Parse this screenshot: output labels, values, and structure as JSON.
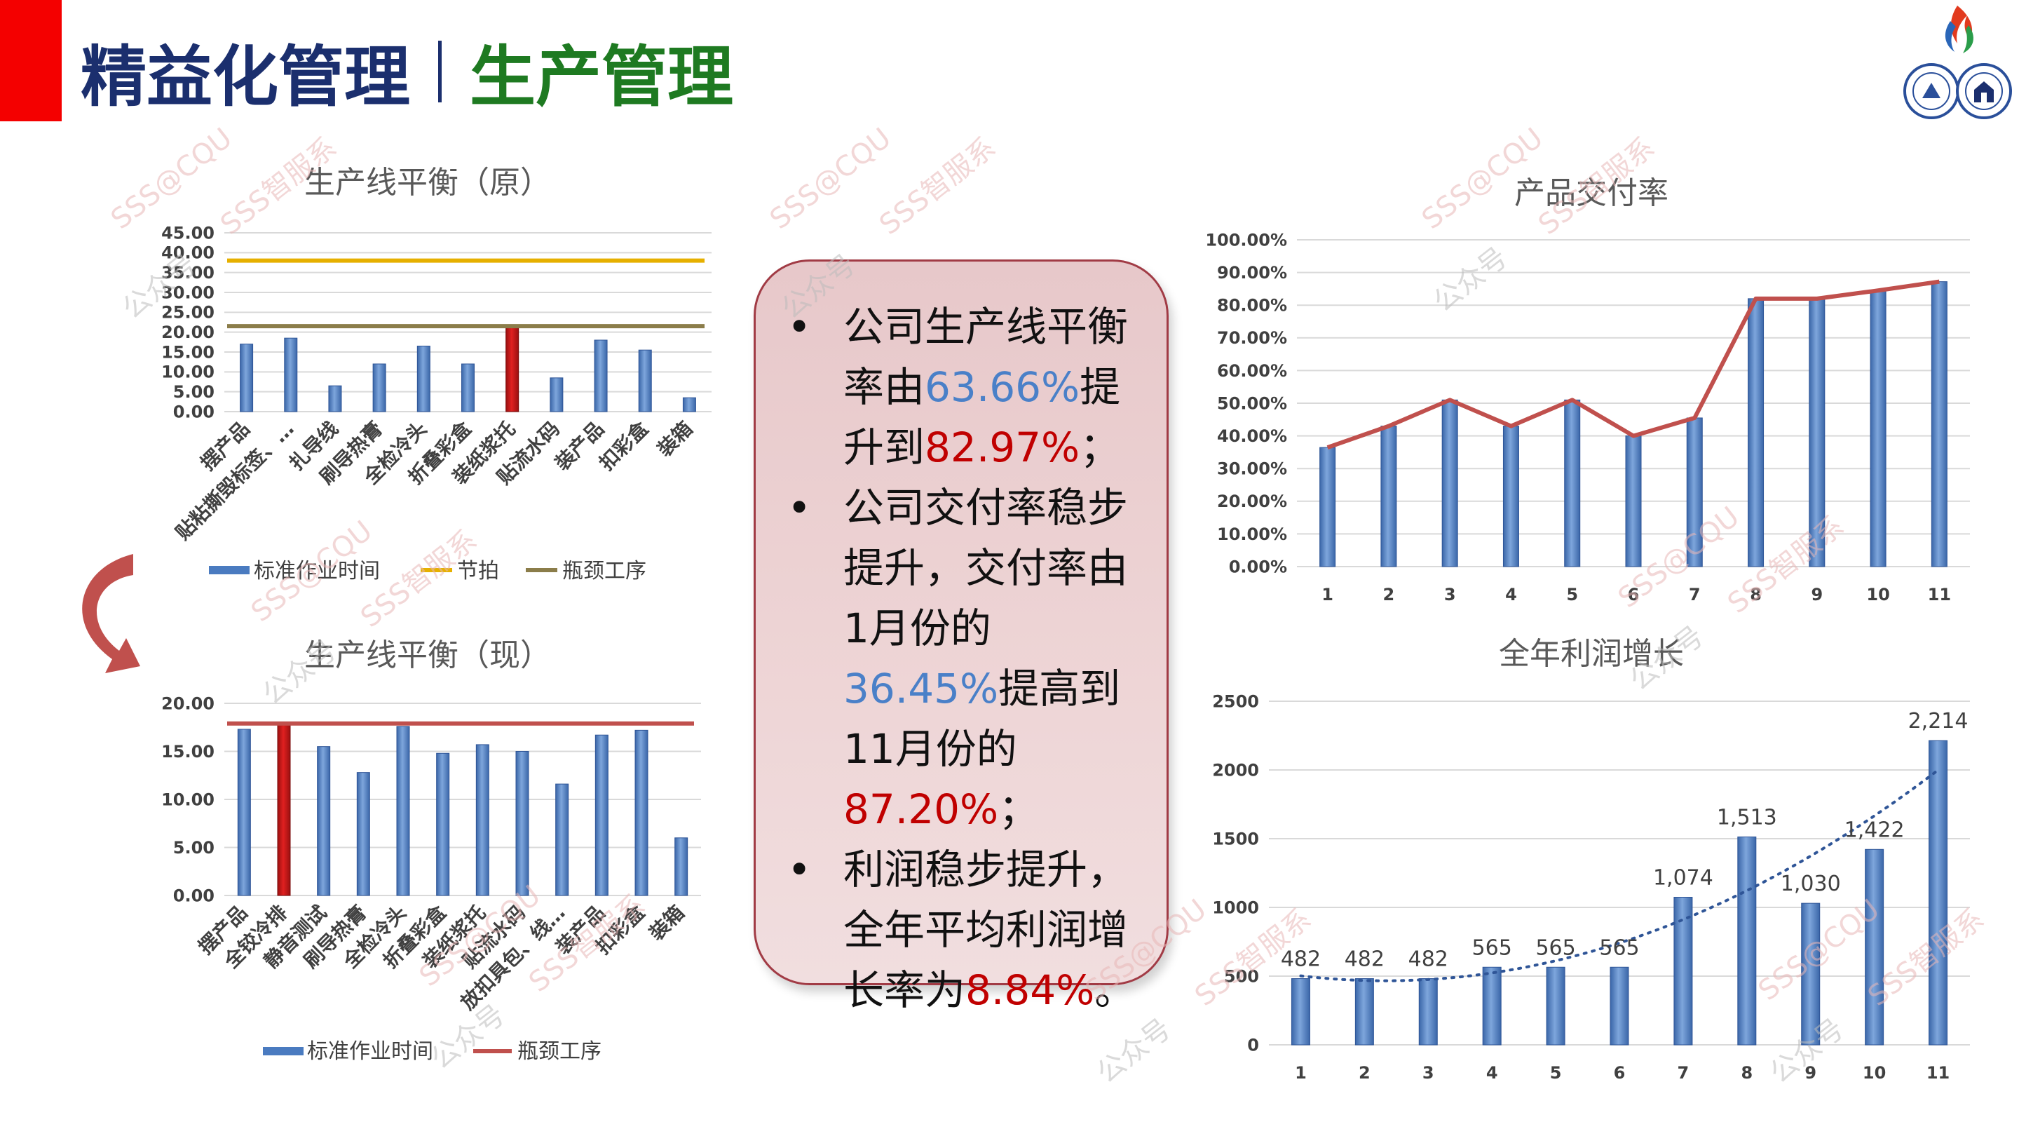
{
  "header": {
    "title_left": "精益化管理",
    "title_right": "生产管理",
    "accent_red": "#f40000",
    "title_blue": "#1b2f6e",
    "title_green": "#1e7a21"
  },
  "watermarks": {
    "handle": "SSS@CQU",
    "brand": "SSS智服系",
    "public": "公众号"
  },
  "summary_box": {
    "b1_pre": "公司生产线平衡率由",
    "b1_v1": "63.66%",
    "b1_mid": "提升到",
    "b1_v2": "82.97%",
    "b1_end": "；",
    "b2_pre": "公司交付率稳步提升，交付率由1月份的",
    "b2_v1": "36.45%",
    "b2_mid": "提高到11月份的",
    "b2_v2": "87.20%",
    "b2_end": "；",
    "b3_pre": "利润稳步提升，全年平均利润增长率为",
    "b3_v1": "8.84%",
    "b3_end": "。"
  },
  "chart_data": [
    {
      "id": "balance-before",
      "type": "bar",
      "title": "生产线平衡（原）",
      "categories": [
        "摆产品",
        "贴粘撕毁标签、…",
        "扎导线",
        "刷导热膏",
        "全检冷头",
        "折叠彩盒",
        "装纸浆托",
        "贴流水码",
        "装产品",
        "扣彩盒",
        "装箱"
      ],
      "series": [
        {
          "name": "标准作业时间",
          "values": [
            17.0,
            18.5,
            6.5,
            12.0,
            16.5,
            12.0,
            21.5,
            8.5,
            18.0,
            15.5,
            3.5
          ]
        }
      ],
      "lines": [
        {
          "name": "节拍",
          "value": 38.0,
          "color": "#e6b000"
        },
        {
          "name": "瓶颈工序",
          "value": 21.5,
          "color": "#8b7d4a"
        }
      ],
      "highlight_index": 6,
      "yticks": [
        "45.00",
        "40.00",
        "35.00",
        "30.00",
        "25.00",
        "20.00",
        "15.00",
        "10.00",
        "5.00",
        "0.00"
      ],
      "ylim": [
        0,
        45
      ],
      "legend": "bottom"
    },
    {
      "id": "balance-after",
      "type": "bar",
      "title": "生产线平衡（现）",
      "categories": [
        "摆产品",
        "全铰冷排",
        "静音测试",
        "刷导热膏",
        "全检冷头",
        "折叠彩盒",
        "装纸浆托",
        "贴流水码",
        "放扣具包、线…",
        "装产品",
        "扣彩盒",
        "装箱"
      ],
      "series": [
        {
          "name": "标准作业时间",
          "values": [
            17.3,
            17.9,
            15.5,
            12.8,
            17.6,
            14.8,
            15.7,
            15.0,
            11.6,
            16.7,
            17.2,
            6.0
          ]
        }
      ],
      "lines": [
        {
          "name": "瓶颈工序",
          "value": 17.9,
          "color": "#c0504d"
        }
      ],
      "highlight_index": 1,
      "yticks": [
        "20.00",
        "15.00",
        "10.00",
        "5.00",
        "0.00"
      ],
      "ylim": [
        0,
        20
      ],
      "legend": "bottom"
    },
    {
      "id": "delivery-rate",
      "type": "bar",
      "title": "产品交付率",
      "categories": [
        "1",
        "2",
        "3",
        "4",
        "5",
        "6",
        "7",
        "8",
        "9",
        "10",
        "11"
      ],
      "series": [
        {
          "name": "",
          "values": [
            36.45,
            43.0,
            51.0,
            43.0,
            51.0,
            40.0,
            45.5,
            82.0,
            82.0,
            84.5,
            87.2
          ]
        }
      ],
      "line_values": [
        36.45,
        43.0,
        51.0,
        43.0,
        51.0,
        40.0,
        45.5,
        82.0,
        82.0,
        84.5,
        87.2
      ],
      "yticks": [
        "100.00%",
        "90.00%",
        "80.00%",
        "70.00%",
        "60.00%",
        "50.00%",
        "40.00%",
        "30.00%",
        "20.00%",
        "10.00%",
        "0.00%"
      ],
      "ylim": [
        0,
        100
      ]
    },
    {
      "id": "profit-growth",
      "type": "bar",
      "title": "全年利润增长",
      "categories": [
        "1",
        "2",
        "3",
        "4",
        "5",
        "6",
        "7",
        "8",
        "9",
        "10",
        "11"
      ],
      "series": [
        {
          "name": "",
          "values": [
            482,
            482,
            482,
            565,
            565,
            565,
            1074,
            1513,
            1030,
            1422,
            2214
          ]
        }
      ],
      "data_labels": [
        "482",
        "482",
        "482",
        "565",
        "565",
        "565",
        "1,074",
        "1,513",
        "1,030",
        "1,422",
        "2,214"
      ],
      "trendline": "polynomial",
      "yticks": [
        "2500",
        "2000",
        "1500",
        "1000",
        "500",
        "0"
      ],
      "ylim": [
        0,
        2500
      ]
    }
  ]
}
